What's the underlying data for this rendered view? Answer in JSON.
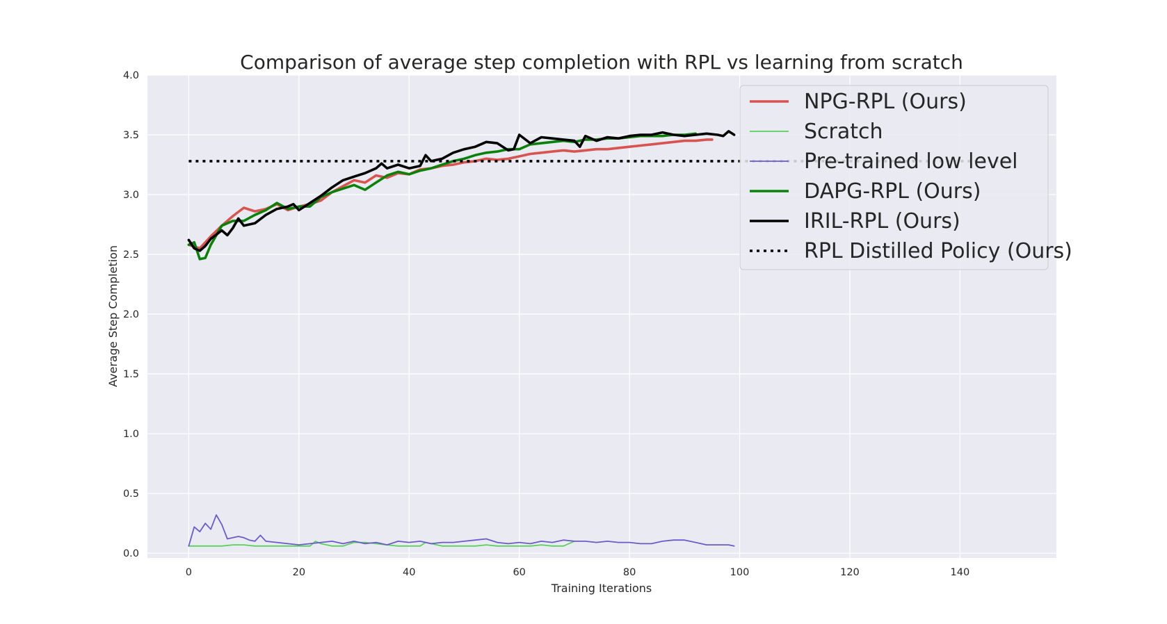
{
  "chart_data": {
    "type": "line",
    "title": "Comparison of average step completion with RPL vs learning from scratch",
    "xlabel": "Training Iterations",
    "ylabel": "Average Step Completion",
    "xlim": [
      -7.5,
      157.5
    ],
    "ylim": [
      -0.04,
      4.0
    ],
    "xticks": [
      0,
      20,
      40,
      60,
      80,
      100,
      120,
      140
    ],
    "xtick_labels": [
      "0",
      "20",
      "40",
      "60",
      "80",
      "100",
      "120",
      "140"
    ],
    "yticks": [
      0.0,
      0.5,
      1.0,
      1.5,
      2.0,
      2.5,
      3.0,
      3.5,
      4.0
    ],
    "ytick_labels": [
      "0.0",
      "0.5",
      "1.0",
      "1.5",
      "2.0",
      "2.5",
      "3.0",
      "3.5",
      "4.0"
    ],
    "grid": true,
    "background": "#EAEAF2",
    "legend_position": "top-right",
    "series": [
      {
        "name": "NPG-RPL (Ours)",
        "color": "#D9534F",
        "style": "solid",
        "width": "thick",
        "x": [
          0,
          2,
          4,
          6,
          8,
          10,
          12,
          14,
          16,
          18,
          20,
          22,
          24,
          26,
          28,
          30,
          32,
          34,
          36,
          38,
          40,
          42,
          44,
          46,
          48,
          50,
          52,
          54,
          56,
          58,
          60,
          62,
          64,
          66,
          68,
          70,
          72,
          74,
          76,
          78,
          80,
          82,
          84,
          86,
          88,
          90,
          92,
          94,
          95
        ],
        "y": [
          2.58,
          2.55,
          2.65,
          2.74,
          2.82,
          2.89,
          2.86,
          2.88,
          2.92,
          2.87,
          2.9,
          2.92,
          2.95,
          3.02,
          3.07,
          3.12,
          3.1,
          3.16,
          3.14,
          3.18,
          3.17,
          3.21,
          3.22,
          3.24,
          3.25,
          3.27,
          3.28,
          3.3,
          3.29,
          3.3,
          3.32,
          3.34,
          3.35,
          3.36,
          3.37,
          3.36,
          3.37,
          3.38,
          3.38,
          3.39,
          3.4,
          3.41,
          3.42,
          3.43,
          3.44,
          3.45,
          3.45,
          3.46,
          3.46
        ]
      },
      {
        "name": "Scratch",
        "color": "#5AD15A",
        "style": "solid",
        "width": "thin",
        "x": [
          0,
          2,
          4,
          6,
          8,
          10,
          12,
          14,
          16,
          18,
          20,
          22,
          23,
          24,
          26,
          28,
          30,
          32,
          34,
          36,
          38,
          40,
          42,
          43,
          44,
          46,
          48,
          50,
          52,
          54,
          56,
          58,
          60,
          62,
          64,
          66,
          68,
          70
        ],
        "y": [
          0.06,
          0.06,
          0.06,
          0.06,
          0.07,
          0.07,
          0.06,
          0.06,
          0.06,
          0.06,
          0.06,
          0.06,
          0.1,
          0.08,
          0.06,
          0.06,
          0.09,
          0.09,
          0.08,
          0.07,
          0.06,
          0.06,
          0.06,
          0.09,
          0.08,
          0.06,
          0.06,
          0.06,
          0.06,
          0.07,
          0.06,
          0.06,
          0.06,
          0.06,
          0.07,
          0.06,
          0.06,
          0.1
        ]
      },
      {
        "name": "Pre-trained low level",
        "color": "#6A5ACD",
        "style": "solid",
        "width": "thin",
        "x": [
          0,
          1,
          2,
          3,
          4,
          5,
          6,
          7,
          8,
          9,
          10,
          11,
          12,
          13,
          14,
          16,
          18,
          20,
          22,
          24,
          26,
          28,
          30,
          32,
          34,
          36,
          38,
          40,
          42,
          44,
          46,
          48,
          50,
          52,
          54,
          56,
          58,
          60,
          62,
          64,
          66,
          68,
          70,
          72,
          74,
          76,
          78,
          80,
          82,
          84,
          86,
          88,
          90,
          92,
          94,
          96,
          98,
          99
        ],
        "y": [
          0.06,
          0.22,
          0.18,
          0.25,
          0.2,
          0.32,
          0.24,
          0.12,
          0.13,
          0.14,
          0.13,
          0.11,
          0.1,
          0.15,
          0.1,
          0.09,
          0.08,
          0.07,
          0.08,
          0.09,
          0.1,
          0.08,
          0.1,
          0.08,
          0.09,
          0.07,
          0.1,
          0.09,
          0.1,
          0.08,
          0.09,
          0.09,
          0.1,
          0.11,
          0.12,
          0.09,
          0.08,
          0.09,
          0.08,
          0.1,
          0.09,
          0.11,
          0.1,
          0.1,
          0.09,
          0.1,
          0.09,
          0.09,
          0.08,
          0.08,
          0.1,
          0.11,
          0.11,
          0.09,
          0.07,
          0.07,
          0.07,
          0.06
        ]
      },
      {
        "name": "DAPG-RPL (Ours)",
        "color": "#0A820A",
        "style": "solid",
        "width": "thick",
        "x": [
          0,
          1,
          2,
          3,
          4,
          6,
          8,
          10,
          12,
          14,
          16,
          18,
          20,
          22,
          24,
          26,
          28,
          30,
          32,
          34,
          36,
          38,
          40,
          42,
          44,
          46,
          48,
          50,
          52,
          54,
          56,
          58,
          60,
          62,
          64,
          66,
          68,
          70,
          72,
          74,
          76,
          78,
          80,
          82,
          84,
          86,
          88,
          90,
          92
        ],
        "y": [
          2.58,
          2.6,
          2.46,
          2.47,
          2.58,
          2.74,
          2.78,
          2.78,
          2.83,
          2.87,
          2.93,
          2.88,
          2.9,
          2.9,
          2.98,
          3.02,
          3.05,
          3.08,
          3.04,
          3.1,
          3.16,
          3.19,
          3.17,
          3.2,
          3.22,
          3.25,
          3.28,
          3.3,
          3.33,
          3.35,
          3.36,
          3.38,
          3.38,
          3.42,
          3.43,
          3.44,
          3.45,
          3.44,
          3.46,
          3.46,
          3.47,
          3.47,
          3.48,
          3.49,
          3.49,
          3.49,
          3.5,
          3.5,
          3.51
        ]
      },
      {
        "name": "IRIL-RPL (Ours)",
        "color": "#000000",
        "style": "solid",
        "width": "thick",
        "x": [
          0,
          1,
          2,
          3,
          4,
          6,
          7,
          8,
          9,
          10,
          12,
          14,
          16,
          18,
          19,
          20,
          22,
          24,
          26,
          28,
          30,
          32,
          34,
          35,
          36,
          38,
          40,
          42,
          43,
          44,
          46,
          48,
          50,
          52,
          54,
          56,
          58,
          59,
          60,
          62,
          64,
          66,
          68,
          70,
          71,
          72,
          74,
          76,
          78,
          80,
          82,
          84,
          86,
          88,
          90,
          92,
          94,
          96,
          97,
          98,
          99
        ],
        "y": [
          2.62,
          2.55,
          2.53,
          2.57,
          2.63,
          2.7,
          2.66,
          2.72,
          2.8,
          2.74,
          2.76,
          2.83,
          2.88,
          2.9,
          2.92,
          2.87,
          2.93,
          2.99,
          3.06,
          3.12,
          3.15,
          3.18,
          3.22,
          3.26,
          3.22,
          3.25,
          3.22,
          3.24,
          3.33,
          3.28,
          3.3,
          3.35,
          3.38,
          3.4,
          3.44,
          3.43,
          3.37,
          3.38,
          3.5,
          3.43,
          3.48,
          3.47,
          3.46,
          3.45,
          3.4,
          3.49,
          3.45,
          3.48,
          3.47,
          3.49,
          3.5,
          3.5,
          3.52,
          3.5,
          3.49,
          3.5,
          3.51,
          3.5,
          3.49,
          3.53,
          3.5
        ]
      },
      {
        "name": "RPL Distilled Policy (Ours)",
        "color": "#000000",
        "style": "dotted",
        "width": "thick",
        "x": [
          0,
          150
        ],
        "y": [
          3.28,
          3.28
        ]
      }
    ]
  }
}
